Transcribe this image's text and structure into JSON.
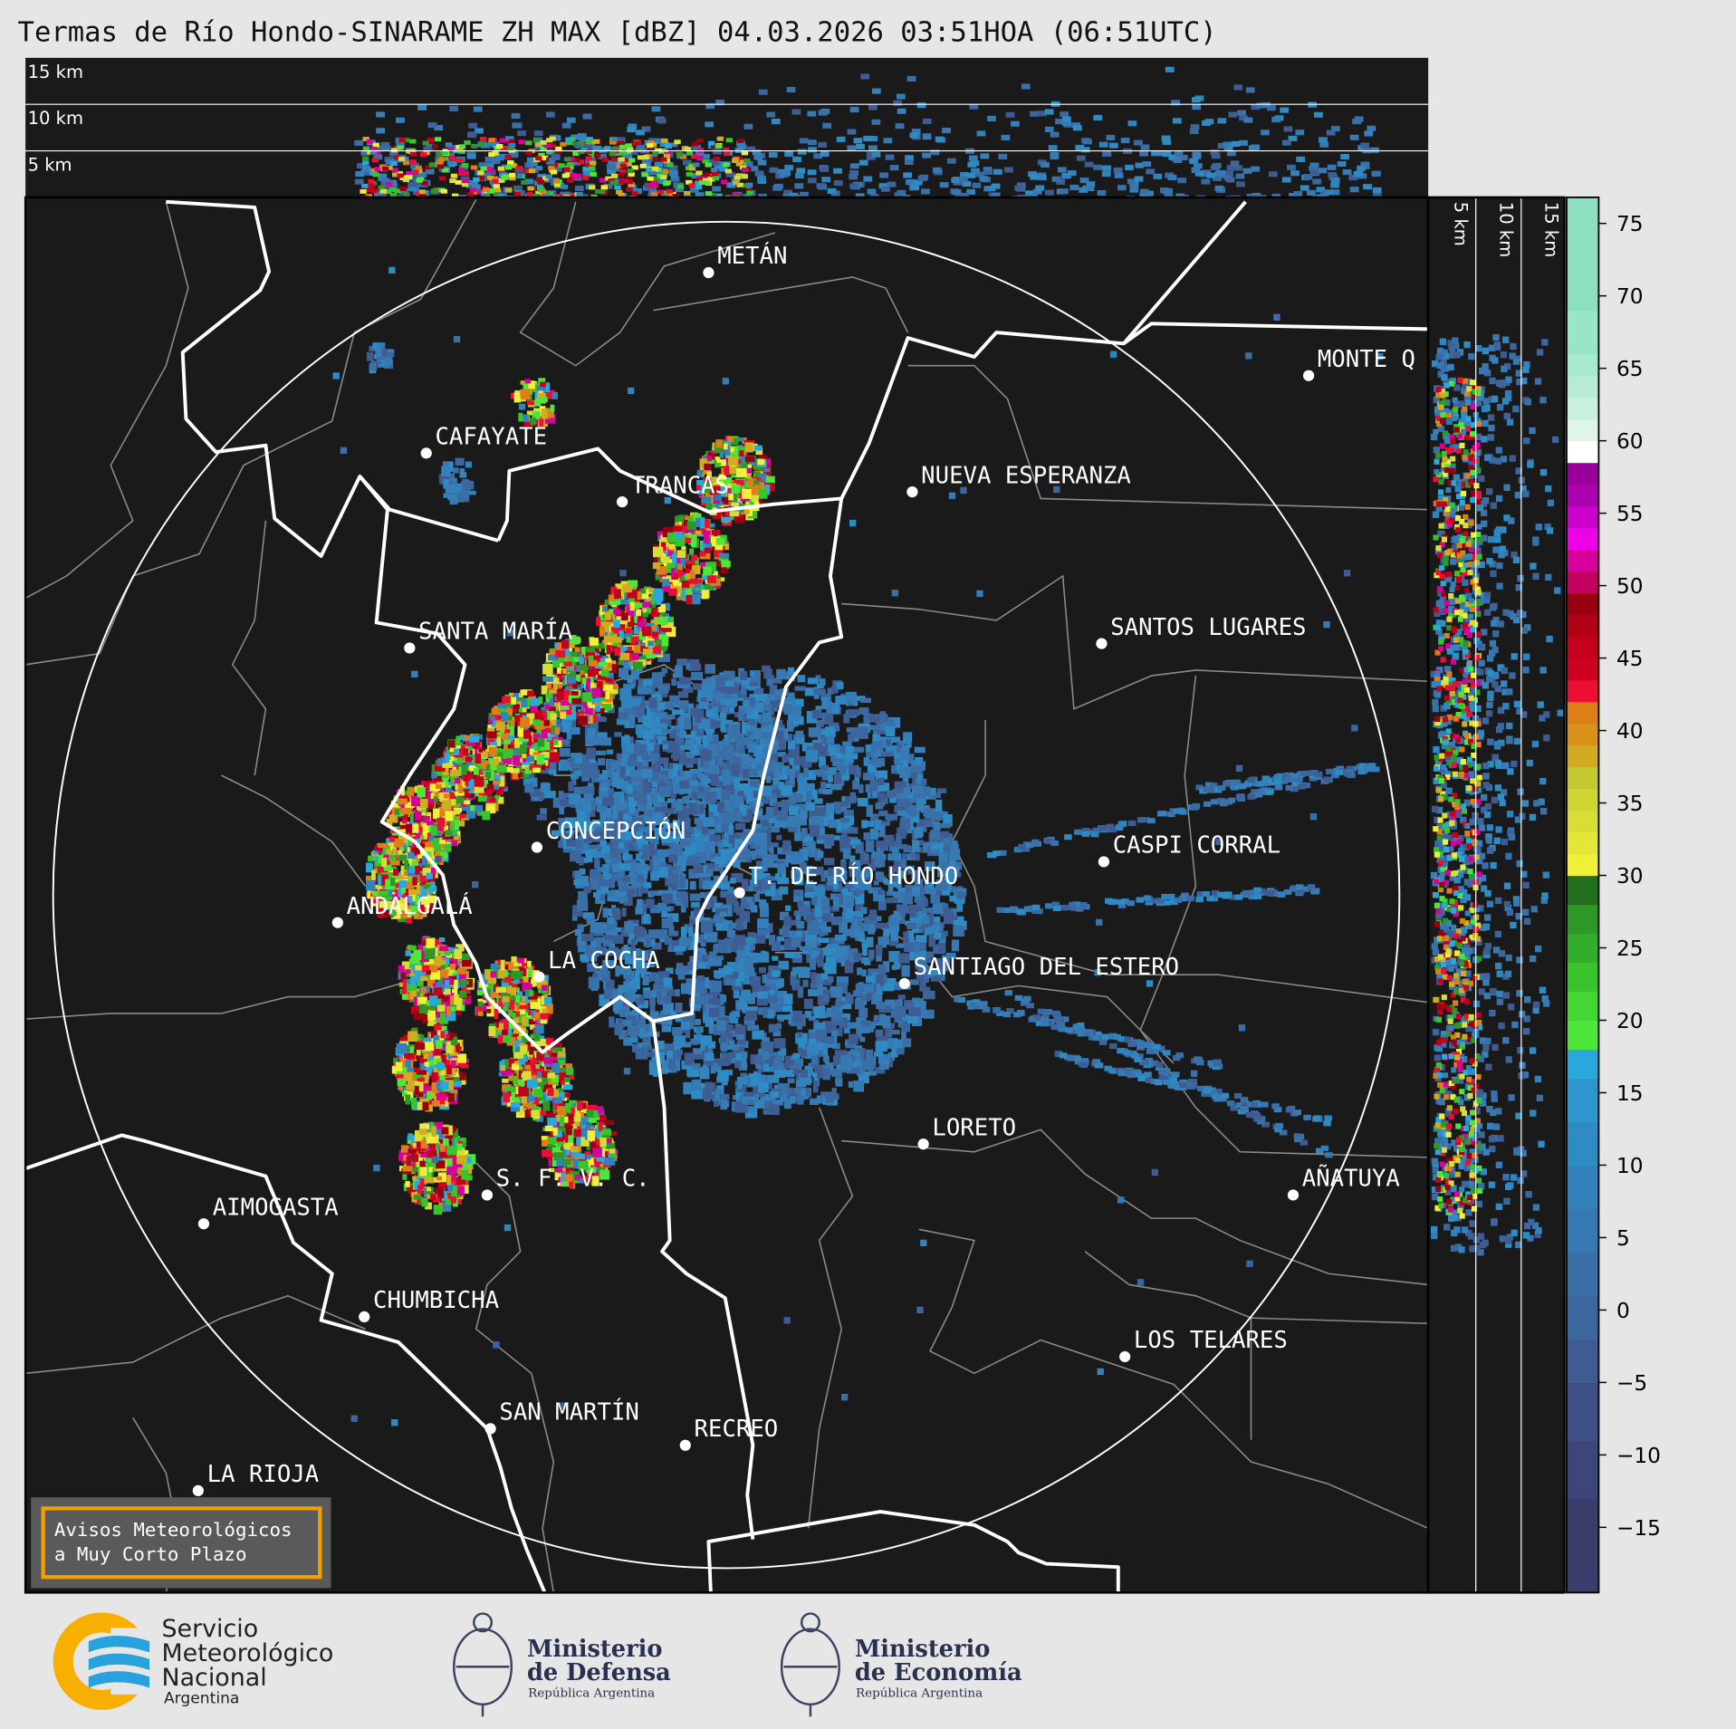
{
  "title": "Termas de Río Hondo-SINARAME ZH MAX [dBZ] 04.03.2026 03:51HOA (06:51UTC)",
  "top_panel": {
    "height_labels": [
      "15 km",
      "10 km",
      "5 km"
    ]
  },
  "side_panel": {
    "height_labels": [
      "5 km",
      "10 km",
      "15 km"
    ]
  },
  "cities": [
    {
      "name": "METÁN"
    },
    {
      "name": "MONTE Q"
    },
    {
      "name": "CAFAYATE"
    },
    {
      "name": "TRANCAS"
    },
    {
      "name": "NUEVA ESPERANZA"
    },
    {
      "name": "SANTA MARÍA"
    },
    {
      "name": "SANTOS LUGARES"
    },
    {
      "name": "CONCEPCIÓN"
    },
    {
      "name": "CASPI CORRAL"
    },
    {
      "name": "T. DE RÍO HONDO"
    },
    {
      "name": "ANDALGALÁ"
    },
    {
      "name": "LA COCHA"
    },
    {
      "name": "SANTIAGO DEL ESTERO"
    },
    {
      "name": "LORETO"
    },
    {
      "name": "S. F. V. C."
    },
    {
      "name": "AÑATUYA"
    },
    {
      "name": "AIMOGASTA"
    },
    {
      "name": "CHUMBICHA"
    },
    {
      "name": "LOS TELARES"
    },
    {
      "name": "SAN MARTÍN"
    },
    {
      "name": "RECREO"
    },
    {
      "name": "LA RIOJA"
    }
  ],
  "notice": {
    "line1": "Avisos Meteorológicos",
    "line2": "a Muy Corto Plazo",
    "border_color": "#f5a000"
  },
  "colorbar": {
    "unit": "dBZ",
    "range": [
      -19.5,
      76.8
    ],
    "ticks": [
      "75",
      "70",
      "65",
      "60",
      "55",
      "50",
      "45",
      "40",
      "35",
      "30",
      "25",
      "20",
      "15",
      "10",
      "5",
      "0",
      "−5",
      "−10",
      "−15"
    ],
    "tick_values": [
      75,
      70,
      65,
      60,
      55,
      50,
      45,
      40,
      35,
      30,
      25,
      20,
      15,
      10,
      5,
      0,
      -5,
      -10,
      -15
    ],
    "bins": [
      [
        -19.5,
        -13,
        "#3a3d6c"
      ],
      [
        -13,
        -9,
        "#3c467a"
      ],
      [
        -9,
        -5,
        "#3d5186"
      ],
      [
        -5,
        -2,
        "#3e5c92"
      ],
      [
        -2,
        1,
        "#3c679e"
      ],
      [
        1,
        4,
        "#3a70a8"
      ],
      [
        4,
        7,
        "#3779b2"
      ],
      [
        7,
        10,
        "#3382bb"
      ],
      [
        10,
        13,
        "#2f8bc4"
      ],
      [
        13,
        16,
        "#2c96cd"
      ],
      [
        16,
        18,
        "#2aa8dc"
      ],
      [
        18,
        20,
        "#4fe63b"
      ],
      [
        20,
        22,
        "#43d634"
      ],
      [
        22,
        24,
        "#39c42e"
      ],
      [
        24,
        26,
        "#32ae2a"
      ],
      [
        26,
        28,
        "#2e9827"
      ],
      [
        28,
        30,
        "#216f1c"
      ],
      [
        30,
        31.5,
        "#f0f03a"
      ],
      [
        31.5,
        33,
        "#e4e738"
      ],
      [
        33,
        34.5,
        "#d9de36"
      ],
      [
        34.5,
        36,
        "#d0d534"
      ],
      [
        36,
        37.5,
        "#c4c830"
      ],
      [
        37.5,
        39,
        "#d1ab22"
      ],
      [
        39,
        40.5,
        "#da911a"
      ],
      [
        40.5,
        42,
        "#dd7f16"
      ],
      [
        42,
        43.5,
        "#ed0e33"
      ],
      [
        43.5,
        45,
        "#cd0022"
      ],
      [
        45,
        46.5,
        "#c4001c"
      ],
      [
        46.5,
        48,
        "#b20015"
      ],
      [
        48,
        49.5,
        "#990010"
      ],
      [
        49.5,
        51,
        "#c2005e"
      ],
      [
        51,
        52.5,
        "#d8009b"
      ],
      [
        52.5,
        54,
        "#ee00e8"
      ],
      [
        54,
        55.5,
        "#cc00cc"
      ],
      [
        55.5,
        57,
        "#ac00b0"
      ],
      [
        57,
        58.5,
        "#990099"
      ],
      [
        58.5,
        60,
        "#ffffff"
      ],
      [
        60,
        61.5,
        "#dff5ea"
      ],
      [
        61.5,
        63,
        "#c8f0de"
      ],
      [
        63,
        64.5,
        "#b6ecd6"
      ],
      [
        64.5,
        66,
        "#a6e9cf"
      ],
      [
        66,
        69,
        "#98e5c8"
      ],
      [
        69,
        76.8,
        "#8ce0c0"
      ]
    ]
  },
  "logos": {
    "smn": {
      "line1": "Servicio",
      "line2": "Meteorológico",
      "line3": "Nacional",
      "line4": "Argentina"
    },
    "defensa": {
      "line1": "Ministerio",
      "line2": "de Defensa",
      "line3": "República Argentina"
    },
    "economia": {
      "line1": "Ministerio",
      "line2": "de Economía",
      "line3": "República Argentina"
    }
  },
  "colors": {
    "background": "#e6e6e6",
    "map": "#1a1a1a",
    "boundary": "#ffffff",
    "department": "#8a8a8a"
  }
}
